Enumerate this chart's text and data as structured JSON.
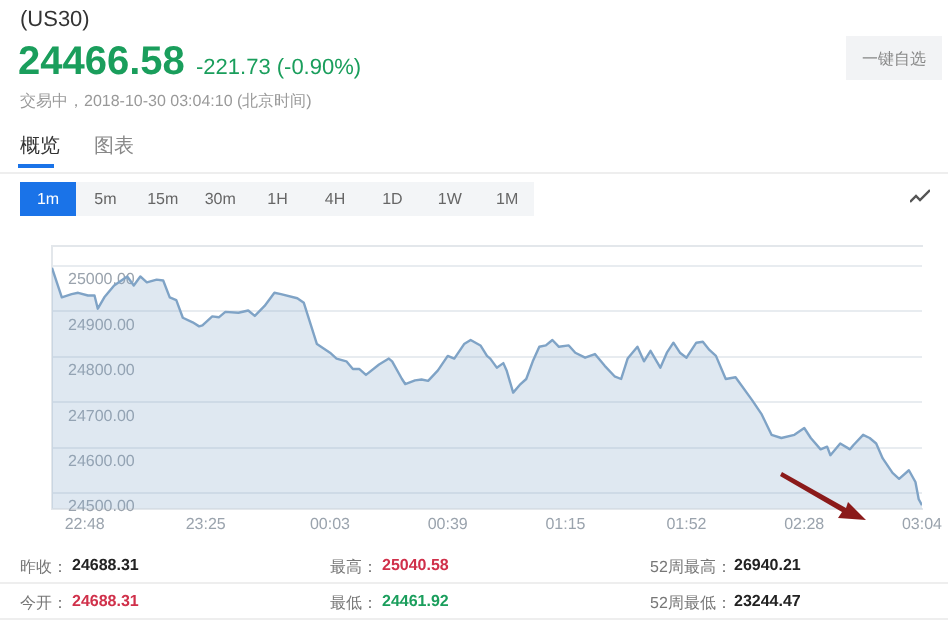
{
  "chart_data": {
    "type": "area",
    "title": "(US30)",
    "annotations": [
      "24466.58",
      "-221.73 (-0.90%)",
      "交易中，2018-10-30 03:04:10 (北京时间)",
      "一键自选",
      "概览",
      "图表",
      "1m",
      "5m",
      "15m",
      "30m",
      "1H",
      "4H",
      "1D",
      "1W",
      "1M",
      "昨收：",
      "24688.31",
      "最高：",
      "25040.58",
      "52周最高：",
      "26940.21",
      "今开：",
      "24688.31",
      "最低：",
      "24461.92",
      "52周最低：",
      "23244.47"
    ],
    "x": [
      "2018-10-29T22:38",
      "2018-10-29T22:41",
      "2018-10-29T22:44",
      "2018-10-29T22:46",
      "2018-10-29T22:49",
      "2018-10-29T22:51",
      "2018-10-29T22:52",
      "2018-10-29T22:54",
      "2018-10-29T22:57",
      "2018-10-29T23:01",
      "2018-10-29T23:03",
      "2018-10-29T23:05",
      "2018-10-29T23:07",
      "2018-10-29T23:10",
      "2018-10-29T23:12",
      "2018-10-29T23:14",
      "2018-10-29T23:16",
      "2018-10-29T23:18",
      "2018-10-29T23:21",
      "2018-10-29T23:23",
      "2018-10-29T23:24",
      "2018-10-29T23:27",
      "2018-10-29T23:29",
      "2018-10-29T23:31",
      "2018-10-29T23:35",
      "2018-10-29T23:38",
      "2018-10-29T23:40",
      "2018-10-29T23:43",
      "2018-10-29T23:46",
      "2018-10-29T23:48",
      "2018-10-29T23:53",
      "2018-10-29T23:55",
      "2018-10-29T23:59",
      "2018-10-30T00:03",
      "2018-10-30T00:05",
      "2018-10-30T00:08",
      "2018-10-30T00:10",
      "2018-10-30T00:12",
      "2018-10-30T00:14",
      "2018-10-30T00:18",
      "2018-10-30T00:21",
      "2018-10-30T00:22",
      "2018-10-30T00:25",
      "2018-10-30T00:26",
      "2018-10-30T00:29",
      "2018-10-30T00:31",
      "2018-10-30T00:33",
      "2018-10-30T00:36",
      "2018-10-30T00:39",
      "2018-10-30T00:41",
      "2018-10-30T00:44",
      "2018-10-30T00:46",
      "2018-10-30T00:49",
      "2018-10-30T00:51",
      "2018-10-30T00:52",
      "2018-10-30T00:54",
      "2018-10-30T00:56",
      "2018-10-30T00:57",
      "2018-10-30T00:59",
      "2018-10-30T01:01",
      "2018-10-30T01:03",
      "2018-10-30T01:05",
      "2018-10-30T01:07",
      "2018-10-30T01:09",
      "2018-10-30T01:11",
      "2018-10-30T01:13",
      "2018-10-30T01:16",
      "2018-10-30T01:18",
      "2018-10-30T01:21",
      "2018-10-30T01:24",
      "2018-10-30T01:27",
      "2018-10-30T01:30",
      "2018-10-30T01:32",
      "2018-10-30T01:34",
      "2018-10-30T01:37",
      "2018-10-30T01:39",
      "2018-10-30T01:41",
      "2018-10-30T01:44",
      "2018-10-30T01:46",
      "2018-10-30T01:48",
      "2018-10-30T01:50",
      "2018-10-30T01:52",
      "2018-10-30T01:55",
      "2018-10-30T01:57",
      "2018-10-30T01:59",
      "2018-10-30T02:01",
      "2018-10-30T02:04",
      "2018-10-30T02:07",
      "2018-10-30T02:12",
      "2018-10-30T02:15",
      "2018-10-30T02:18",
      "2018-10-30T02:21",
      "2018-10-30T02:25",
      "2018-10-30T02:28",
      "2018-10-30T02:30",
      "2018-10-30T02:33",
      "2018-10-30T02:35",
      "2018-10-30T02:36",
      "2018-10-30T02:39",
      "2018-10-30T02:42",
      "2018-10-30T02:43",
      "2018-10-30T02:46",
      "2018-10-30T02:48",
      "2018-10-30T02:50",
      "2018-10-30T02:52",
      "2018-10-30T02:55",
      "2018-10-30T02:57",
      "2018-10-30T03:00",
      "2018-10-30T03:02",
      "2018-10-30T03:03",
      "2018-10-30T03:04"
    ],
    "series": [
      {
        "color": "#7fa3c6",
        "values": [
          24996,
          24931,
          24938,
          24941,
          24935,
          24935,
          24906,
          24931,
          24957,
          24977,
          24957,
          24977,
          24964,
          24970,
          24968,
          24931,
          24925,
          24886,
          24876,
          24867,
          24869,
          24889,
          24887,
          24899,
          24897,
          24902,
          24890,
          24912,
          24941,
          24938,
          24929,
          24919,
          24828,
          24809,
          24796,
          24790,
          24773,
          24773,
          24760,
          24783,
          24796,
          24790,
          24751,
          24740,
          24748,
          24750,
          24747,
          24770,
          24802,
          24796,
          24828,
          24837,
          24825,
          24802,
          24796,
          24776,
          24786,
          24770,
          24721,
          24738,
          24751,
          24790,
          24822,
          24825,
          24837,
          24822,
          24825,
          24809,
          24798,
          24806,
          24780,
          24757,
          24751,
          24796,
          24822,
          24790,
          24813,
          24776,
          24809,
          24831,
          24809,
          24798,
          24831,
          24833,
          24815,
          24802,
          24751,
          24755,
          24705,
          24673,
          24628,
          24621,
          24628,
          24643,
          24621,
          24596,
          24602,
          24583,
          24609,
          24596,
          24605,
          24628,
          24621,
          24609,
          24576,
          24544,
          24531,
          24550,
          24524,
          24486,
          24473
        ]
      }
    ],
    "xlim": [
      "2018-10-29T22:38",
      "2018-10-30T03:04"
    ],
    "xticks": [
      {
        "value": "2018-10-29T22:48",
        "label": "22:48"
      },
      {
        "value": "2018-10-29T23:25",
        "label": "23:25"
      },
      {
        "value": "2018-10-30T00:03",
        "label": "00:03"
      },
      {
        "value": "2018-10-30T00:39",
        "label": "00:39"
      },
      {
        "value": "2018-10-30T01:15",
        "label": "01:15"
      },
      {
        "value": "2018-10-30T01:52",
        "label": "01:52"
      },
      {
        "value": "2018-10-30T02:28",
        "label": "02:28"
      },
      {
        "value": "2018-10-30T03:04",
        "label": "03:04"
      }
    ],
    "ylim": [
      24465,
      25045
    ],
    "yticks": [
      {
        "value": 24500,
        "label": "24500.00"
      },
      {
        "value": 24600,
        "label": "24600.00"
      },
      {
        "value": 24700,
        "label": "24700.00"
      },
      {
        "value": 24800,
        "label": "24800.00"
      },
      {
        "value": 24900,
        "label": "24900.00"
      },
      {
        "value": 25000,
        "label": "25000.00"
      }
    ],
    "grid": "y",
    "legend": false,
    "marker": "none"
  }
}
